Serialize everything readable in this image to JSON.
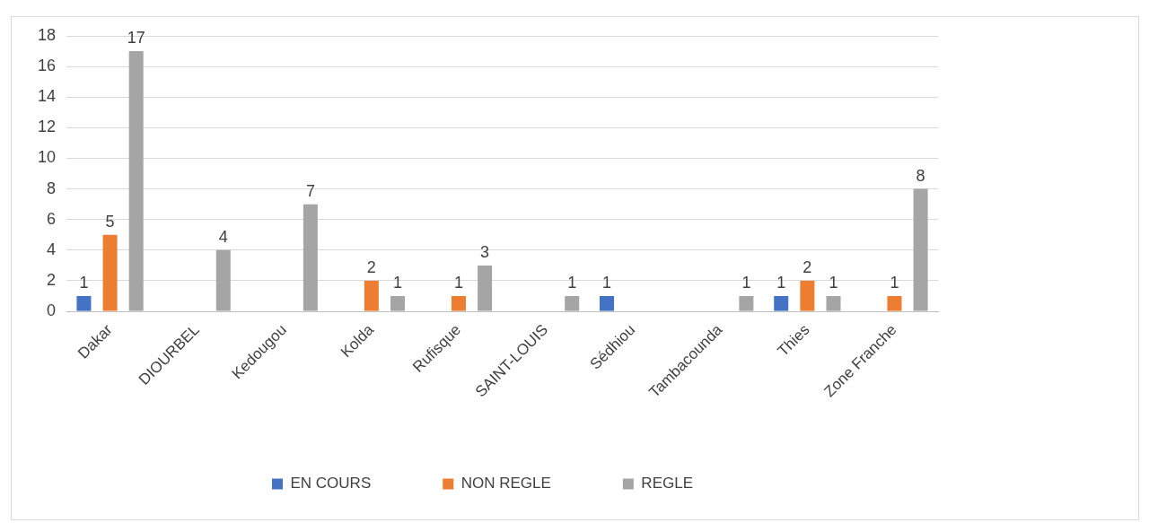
{
  "chart_data": {
    "type": "bar",
    "categories": [
      "Dakar",
      "DIOURBEL",
      "Kedougou",
      "Kolda",
      "Rufisque",
      "SAINT-LOUIS",
      "Sédhiou",
      "Tambacounda",
      "Thies",
      "Zone Franche"
    ],
    "series": [
      {
        "name": "EN COURS",
        "color": "#4472c4",
        "values": [
          1,
          null,
          null,
          null,
          null,
          null,
          1,
          null,
          1,
          null
        ]
      },
      {
        "name": "NON REGLE",
        "color": "#ed7d31",
        "values": [
          5,
          null,
          null,
          2,
          1,
          null,
          null,
          null,
          2,
          1
        ]
      },
      {
        "name": "REGLE",
        "color": "#a5a5a5",
        "values": [
          17,
          4,
          7,
          1,
          3,
          1,
          null,
          1,
          1,
          8
        ]
      }
    ],
    "ylim": [
      0,
      18
    ],
    "yticks": [
      0,
      2,
      4,
      6,
      8,
      10,
      12,
      14,
      16,
      18
    ],
    "grid": "y",
    "legend": "bottom",
    "data_labels": true
  }
}
